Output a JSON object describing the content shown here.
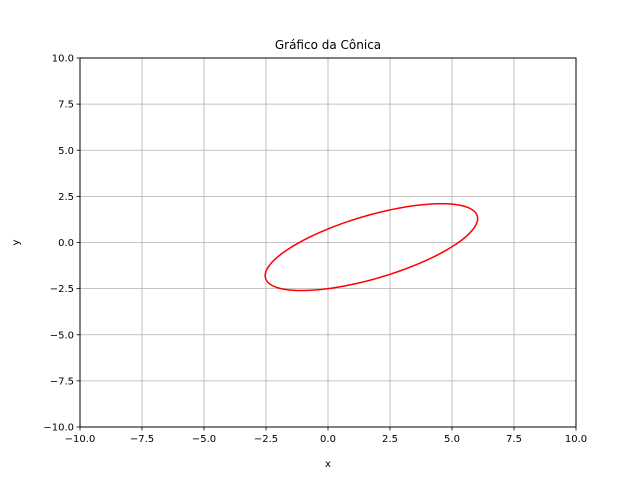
{
  "chart_data": {
    "type": "line",
    "title": "Gráfico da Cônica",
    "xlabel": "x",
    "ylabel": "y",
    "xlim": [
      -10,
      10
    ],
    "ylim": [
      -10,
      10
    ],
    "x_ticks": [
      -10,
      -7.5,
      -5,
      -2.5,
      0,
      2.5,
      5,
      7.5,
      10
    ],
    "y_ticks": [
      -10,
      -7.5,
      -5,
      -2.5,
      0,
      2.5,
      5,
      7.5,
      10
    ],
    "x_tick_labels": [
      "−10.0",
      "−7.5",
      "−5.0",
      "−2.5",
      "0.0",
      "2.5",
      "5.0",
      "7.5",
      "10.0"
    ],
    "y_tick_labels": [
      "−10.0",
      "−7.5",
      "−5.0",
      "−2.5",
      "0.0",
      "2.5",
      "5.0",
      "7.5",
      "10.0"
    ],
    "grid": true,
    "series": [
      {
        "shape": "ellipse",
        "color": "#ff0000",
        "center": [
          1.75,
          -0.25
        ],
        "semi_major": 4.6,
        "semi_minor": 1.65,
        "rotation_deg": 23
      }
    ]
  }
}
